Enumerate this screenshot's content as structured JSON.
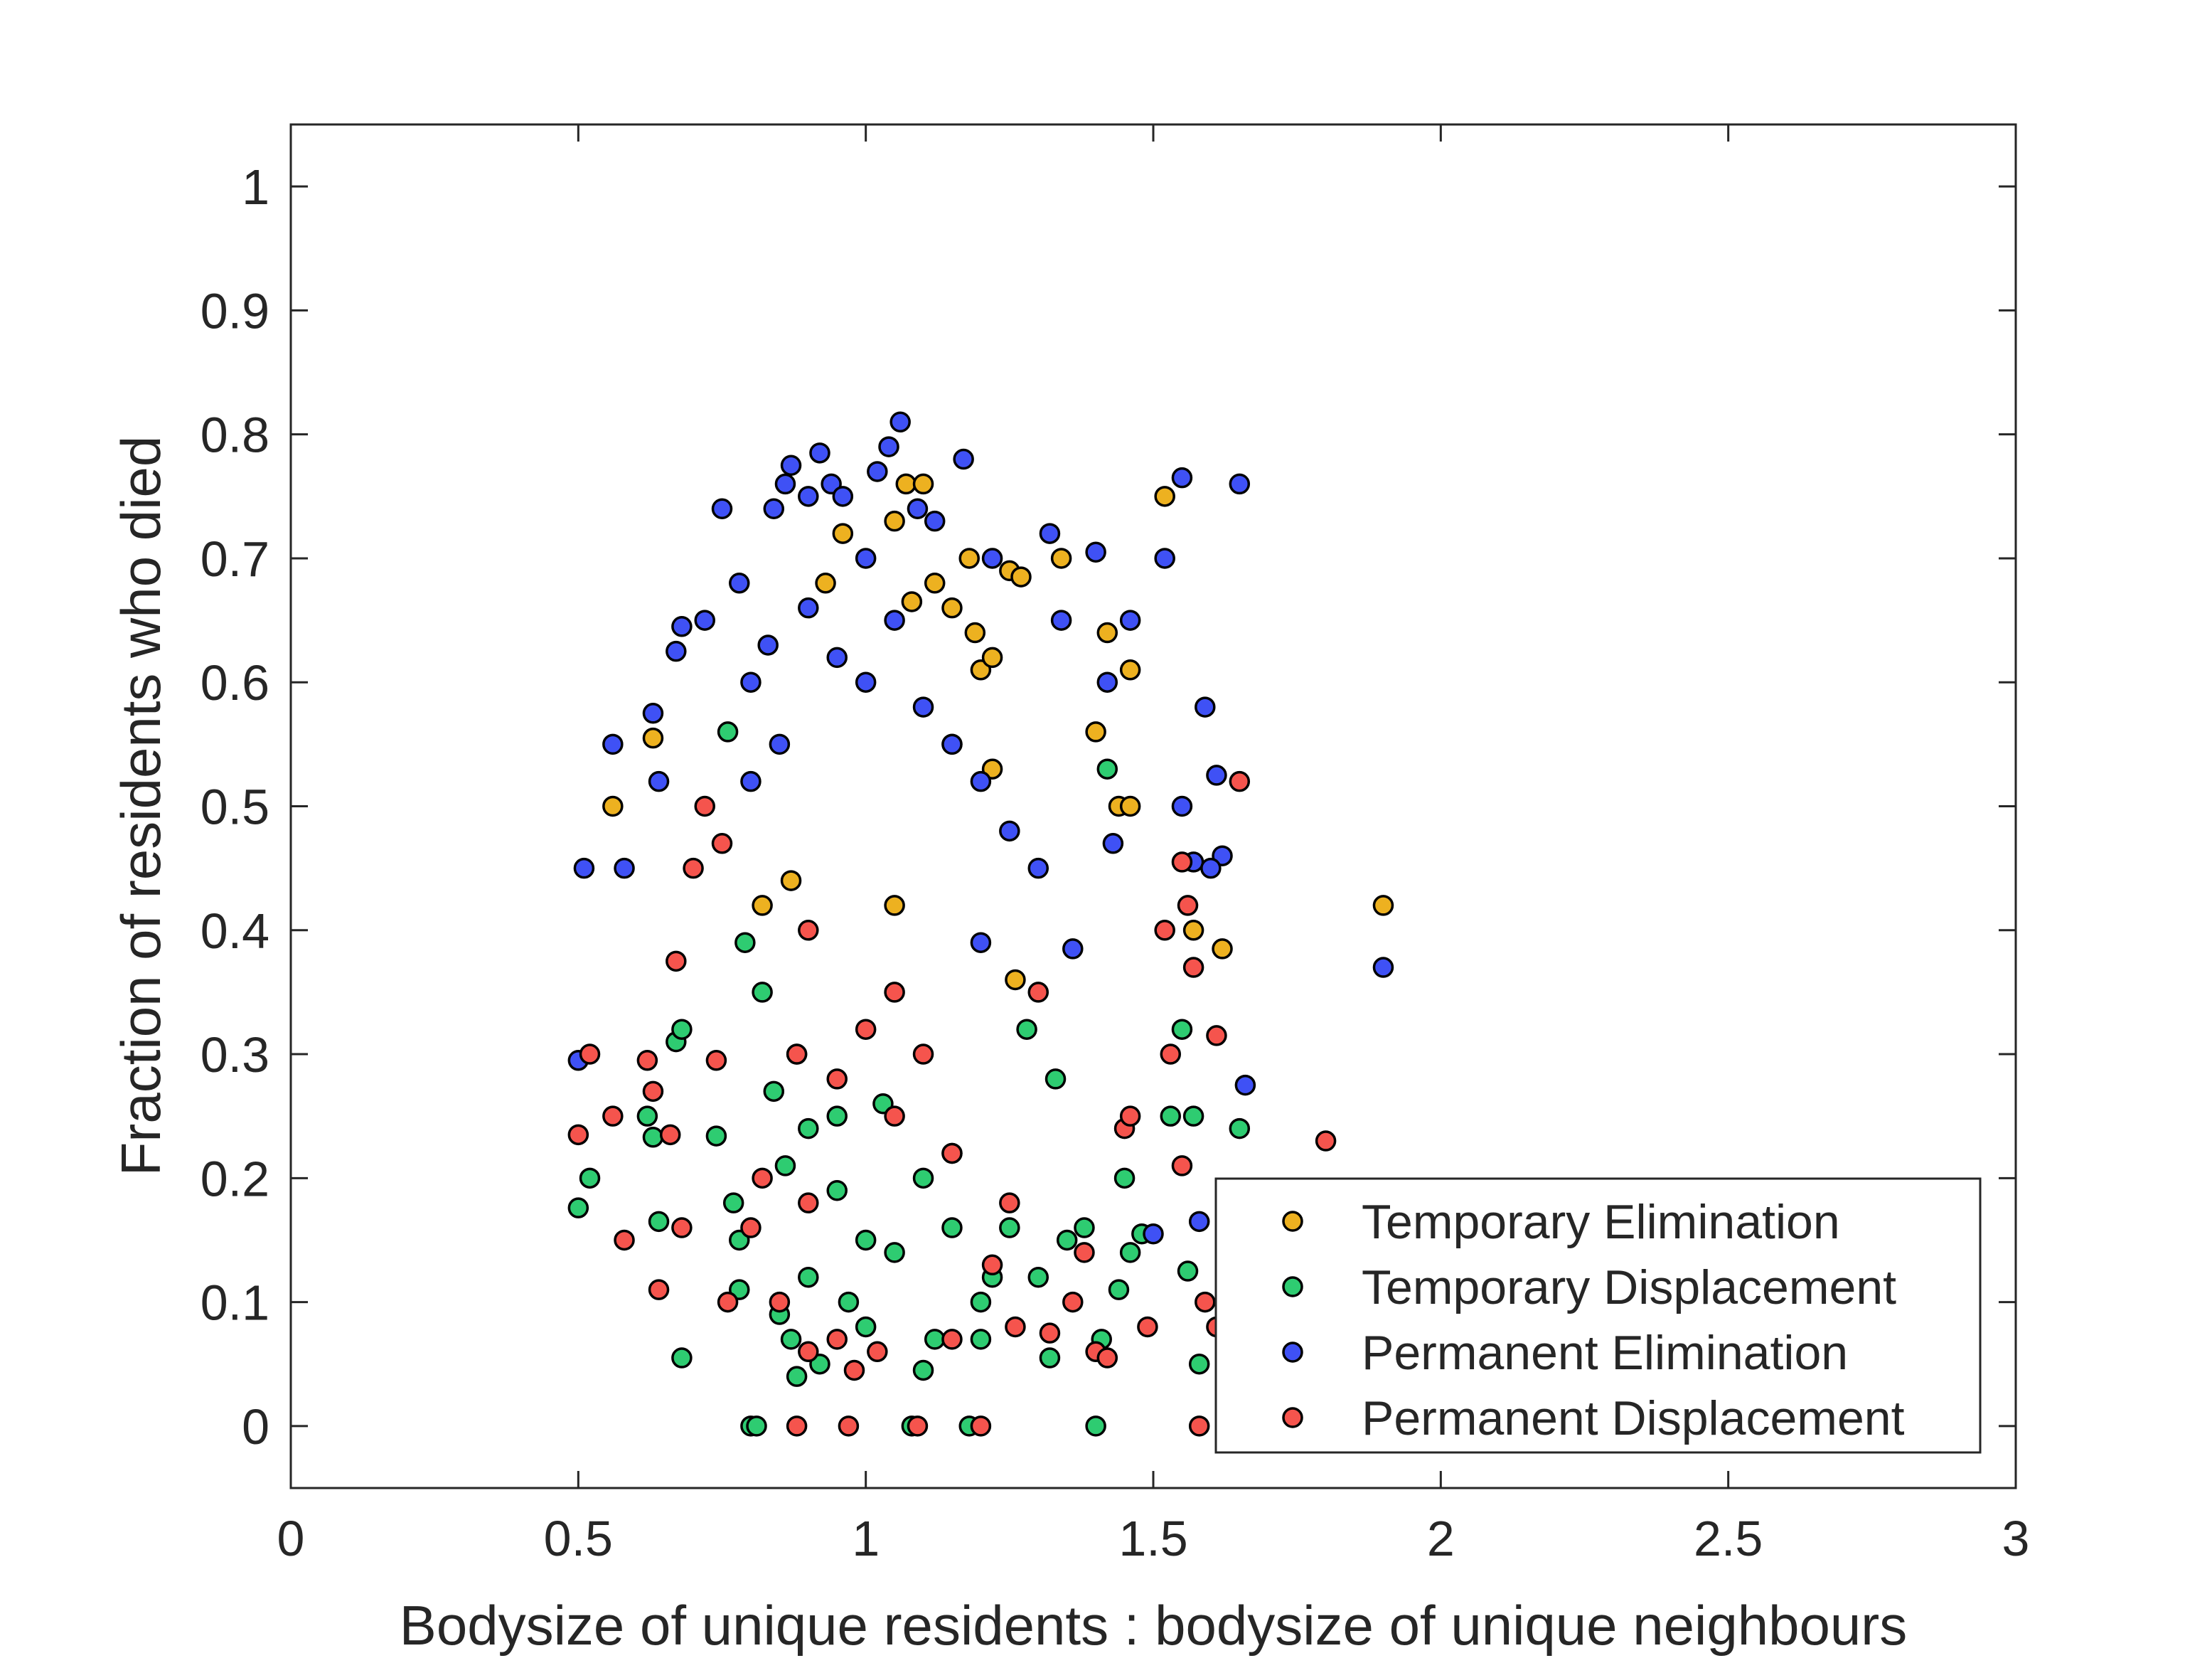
{
  "chart_data": {
    "type": "scatter",
    "title": "",
    "xlabel": "Bodysize of unique residents : bodysize of unique neighbours",
    "ylabel": "Fraction of residents who died",
    "xlim": [
      0,
      3
    ],
    "ylim": [
      -0.05,
      1.05
    ],
    "xticks": [
      0,
      0.5,
      1,
      1.5,
      2,
      2.5,
      3
    ],
    "xtick_labels": [
      "0",
      "0.5",
      "1",
      "1.5",
      "2",
      "2.5",
      "3"
    ],
    "yticks": [
      0,
      0.1,
      0.2,
      0.3,
      0.4,
      0.5,
      0.6,
      0.7,
      0.8,
      0.9,
      1
    ],
    "ytick_labels": [
      "0",
      "0.1",
      "0.2",
      "0.3",
      "0.4",
      "0.5",
      "0.6",
      "0.7",
      "0.8",
      "0.9",
      "1"
    ],
    "grid": false,
    "box": true,
    "legend_position": "bottom-right",
    "marker_edge_color": "#000000",
    "series": [
      {
        "name": "Temporary Elimination",
        "color": "#edb120",
        "points": [
          [
            0.56,
            0.5
          ],
          [
            0.63,
            0.555
          ],
          [
            0.82,
            0.42
          ],
          [
            0.96,
            0.72
          ],
          [
            1.05,
            0.73
          ],
          [
            1.07,
            0.76
          ],
          [
            1.1,
            0.76
          ],
          [
            1.12,
            0.68
          ],
          [
            1.15,
            0.66
          ],
          [
            1.18,
            0.7
          ],
          [
            1.19,
            0.64
          ],
          [
            1.2,
            0.61
          ],
          [
            1.22,
            0.62
          ],
          [
            1.25,
            0.69
          ],
          [
            1.27,
            0.685
          ],
          [
            1.34,
            0.7
          ],
          [
            1.4,
            0.56
          ],
          [
            1.42,
            0.64
          ],
          [
            1.44,
            0.5
          ],
          [
            1.46,
            0.5
          ],
          [
            1.46,
            0.61
          ],
          [
            1.52,
            0.75
          ],
          [
            1.57,
            0.4
          ],
          [
            1.62,
            0.385
          ],
          [
            1.9,
            0.42
          ],
          [
            1.05,
            0.42
          ],
          [
            1.26,
            0.36
          ],
          [
            1.15,
            0.55
          ],
          [
            0.93,
            0.68
          ],
          [
            1.08,
            0.665
          ],
          [
            0.87,
            0.44
          ],
          [
            1.22,
            0.53
          ]
        ]
      },
      {
        "name": "Temporary Displacement",
        "color": "#2ecc71",
        "points": [
          [
            0.5,
            0.176
          ],
          [
            0.52,
            0.2
          ],
          [
            0.62,
            0.25
          ],
          [
            0.63,
            0.233
          ],
          [
            0.64,
            0.165
          ],
          [
            0.67,
            0.31
          ],
          [
            0.68,
            0.32
          ],
          [
            0.68,
            0.055
          ],
          [
            0.74,
            0.234
          ],
          [
            0.76,
            0.56
          ],
          [
            0.77,
            0.18
          ],
          [
            0.78,
            0.15
          ],
          [
            0.79,
            0.39
          ],
          [
            0.8,
            0.0
          ],
          [
            0.81,
            0.0
          ],
          [
            0.82,
            0.35
          ],
          [
            0.84,
            0.27
          ],
          [
            0.85,
            0.09
          ],
          [
            0.86,
            0.21
          ],
          [
            0.87,
            0.07
          ],
          [
            0.88,
            0.04
          ],
          [
            0.9,
            0.12
          ],
          [
            0.92,
            0.05
          ],
          [
            0.95,
            0.19
          ],
          [
            0.97,
            0.1
          ],
          [
            1.0,
            0.08
          ],
          [
            1.03,
            0.26
          ],
          [
            1.05,
            0.14
          ],
          [
            1.08,
            0.0
          ],
          [
            1.1,
            0.045
          ],
          [
            1.12,
            0.07
          ],
          [
            1.15,
            0.16
          ],
          [
            1.18,
            0.0
          ],
          [
            1.2,
            0.07
          ],
          [
            1.22,
            0.12
          ],
          [
            1.25,
            0.16
          ],
          [
            1.28,
            0.32
          ],
          [
            1.3,
            0.12
          ],
          [
            1.32,
            0.055
          ],
          [
            1.33,
            0.28
          ],
          [
            1.35,
            0.15
          ],
          [
            1.38,
            0.16
          ],
          [
            1.4,
            0.0
          ],
          [
            1.41,
            0.07
          ],
          [
            1.42,
            0.53
          ],
          [
            1.44,
            0.11
          ],
          [
            1.45,
            0.2
          ],
          [
            1.46,
            0.14
          ],
          [
            1.48,
            0.155
          ],
          [
            1.53,
            0.25
          ],
          [
            1.55,
            0.32
          ],
          [
            1.56,
            0.125
          ],
          [
            1.57,
            0.25
          ],
          [
            1.58,
            0.05
          ],
          [
            1.65,
            0.24
          ],
          [
            0.95,
            0.25
          ],
          [
            1.0,
            0.15
          ],
          [
            0.88,
            0.3
          ],
          [
            1.1,
            0.2
          ],
          [
            0.78,
            0.11
          ],
          [
            1.2,
            0.1
          ],
          [
            0.9,
            0.24
          ],
          [
            1.15,
            0.22
          ]
        ]
      },
      {
        "name": "Permanent Elimination",
        "color": "#3f51f5",
        "points": [
          [
            0.5,
            0.295
          ],
          [
            0.51,
            0.45
          ],
          [
            0.56,
            0.55
          ],
          [
            0.58,
            0.45
          ],
          [
            0.63,
            0.575
          ],
          [
            0.64,
            0.52
          ],
          [
            0.67,
            0.625
          ],
          [
            0.68,
            0.645
          ],
          [
            0.72,
            0.65
          ],
          [
            0.75,
            0.74
          ],
          [
            0.78,
            0.68
          ],
          [
            0.8,
            0.6
          ],
          [
            0.84,
            0.74
          ],
          [
            0.86,
            0.76
          ],
          [
            0.87,
            0.775
          ],
          [
            0.9,
            0.75
          ],
          [
            0.92,
            0.785
          ],
          [
            0.94,
            0.76
          ],
          [
            0.96,
            0.75
          ],
          [
            1.0,
            0.7
          ],
          [
            1.02,
            0.77
          ],
          [
            1.04,
            0.79
          ],
          [
            1.06,
            0.81
          ],
          [
            1.09,
            0.74
          ],
          [
            1.12,
            0.73
          ],
          [
            1.17,
            0.78
          ],
          [
            1.22,
            0.7
          ],
          [
            1.32,
            0.72
          ],
          [
            1.34,
            0.65
          ],
          [
            1.4,
            0.705
          ],
          [
            1.42,
            0.6
          ],
          [
            1.46,
            0.65
          ],
          [
            1.52,
            0.7
          ],
          [
            1.55,
            0.765
          ],
          [
            1.59,
            0.58
          ],
          [
            1.61,
            0.525
          ],
          [
            1.62,
            0.46
          ],
          [
            1.65,
            0.76
          ],
          [
            1.66,
            0.275
          ],
          [
            1.9,
            0.37
          ],
          [
            1.55,
            0.5
          ],
          [
            1.57,
            0.455
          ],
          [
            1.6,
            0.45
          ],
          [
            1.58,
            0.165
          ],
          [
            1.5,
            0.155
          ],
          [
            1.43,
            0.47
          ],
          [
            1.36,
            0.385
          ],
          [
            0.83,
            0.63
          ],
          [
            0.9,
            0.66
          ],
          [
            0.95,
            0.62
          ],
          [
            1.0,
            0.6
          ],
          [
            1.05,
            0.65
          ],
          [
            1.1,
            0.58
          ],
          [
            1.15,
            0.55
          ],
          [
            1.2,
            0.52
          ],
          [
            1.25,
            0.48
          ],
          [
            0.85,
            0.55
          ],
          [
            0.8,
            0.52
          ],
          [
            1.3,
            0.45
          ],
          [
            1.2,
            0.39
          ]
        ]
      },
      {
        "name": "Permanent Displacement",
        "color": "#f5544d",
        "points": [
          [
            0.5,
            0.235
          ],
          [
            0.52,
            0.3
          ],
          [
            0.56,
            0.25
          ],
          [
            0.58,
            0.15
          ],
          [
            0.62,
            0.295
          ],
          [
            0.63,
            0.27
          ],
          [
            0.64,
            0.11
          ],
          [
            0.66,
            0.235
          ],
          [
            0.67,
            0.375
          ],
          [
            0.68,
            0.16
          ],
          [
            0.7,
            0.45
          ],
          [
            0.72,
            0.5
          ],
          [
            0.74,
            0.295
          ],
          [
            0.75,
            0.47
          ],
          [
            0.76,
            0.1
          ],
          [
            0.8,
            0.16
          ],
          [
            0.85,
            0.1
          ],
          [
            0.88,
            0.0
          ],
          [
            0.9,
            0.06
          ],
          [
            0.95,
            0.07
          ],
          [
            0.97,
            0.0
          ],
          [
            0.98,
            0.045
          ],
          [
            1.02,
            0.06
          ],
          [
            1.05,
            0.35
          ],
          [
            1.09,
            0.0
          ],
          [
            1.15,
            0.07
          ],
          [
            1.2,
            0.0
          ],
          [
            1.22,
            0.13
          ],
          [
            1.26,
            0.08
          ],
          [
            1.3,
            0.35
          ],
          [
            1.32,
            0.075
          ],
          [
            1.36,
            0.1
          ],
          [
            1.38,
            0.14
          ],
          [
            1.4,
            0.06
          ],
          [
            1.42,
            0.055
          ],
          [
            1.45,
            0.24
          ],
          [
            1.46,
            0.25
          ],
          [
            1.49,
            0.08
          ],
          [
            1.52,
            0.4
          ],
          [
            1.53,
            0.3
          ],
          [
            1.55,
            0.455
          ],
          [
            1.55,
            0.21
          ],
          [
            1.56,
            0.42
          ],
          [
            1.57,
            0.37
          ],
          [
            1.58,
            0.0
          ],
          [
            1.59,
            0.1
          ],
          [
            1.61,
            0.08
          ],
          [
            1.61,
            0.315
          ],
          [
            1.65,
            0.52
          ],
          [
            1.8,
            0.23
          ],
          [
            0.88,
            0.3
          ],
          [
            0.9,
            0.4
          ],
          [
            0.95,
            0.28
          ],
          [
            1.0,
            0.32
          ],
          [
            1.05,
            0.25
          ],
          [
            1.1,
            0.3
          ],
          [
            1.15,
            0.22
          ],
          [
            0.82,
            0.2
          ],
          [
            1.25,
            0.18
          ],
          [
            0.9,
            0.18
          ]
        ]
      }
    ]
  }
}
